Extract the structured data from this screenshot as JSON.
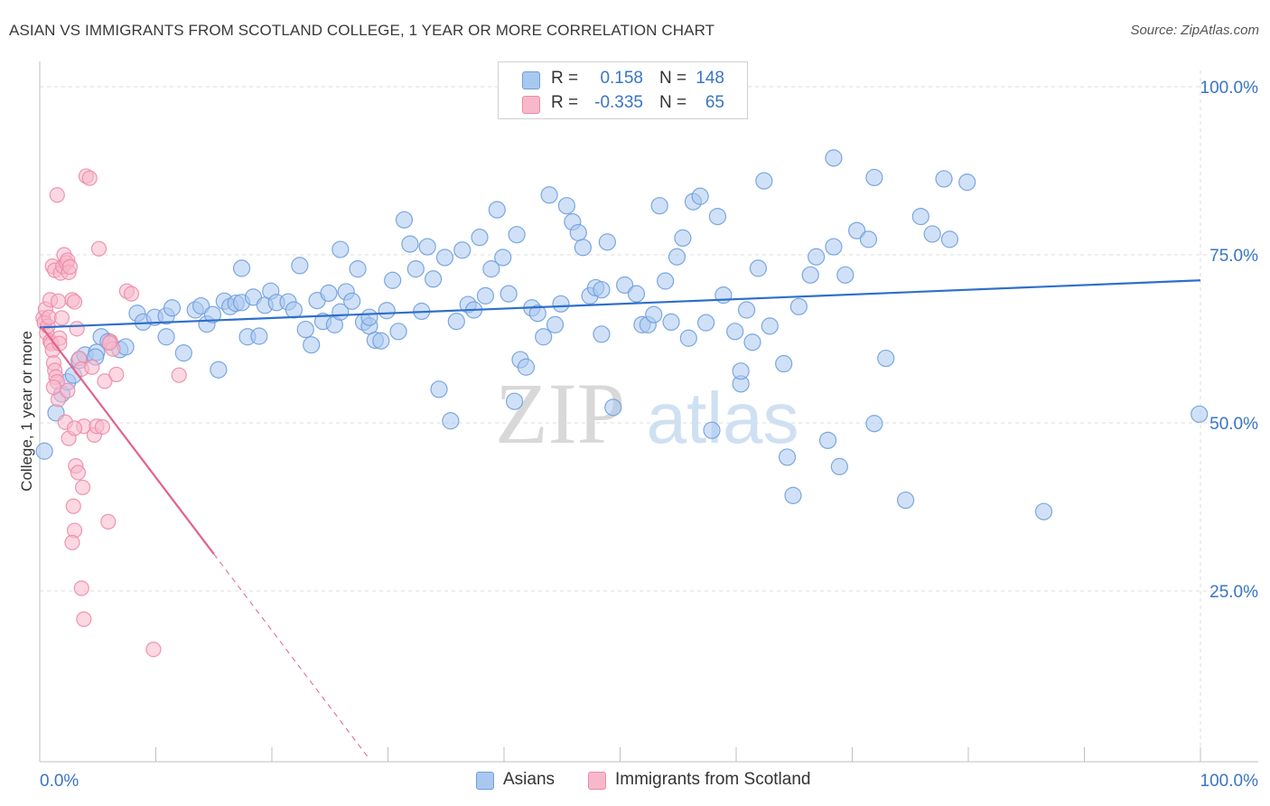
{
  "header": {
    "title": "ASIAN VS IMMIGRANTS FROM SCOTLAND COLLEGE, 1 YEAR OR MORE CORRELATION CHART",
    "source": "Source: ZipAtlas.com"
  },
  "watermark": {
    "zip": "ZIP",
    "atlas": "atlas"
  },
  "legend": {
    "rows": [
      {
        "r_label": "R =",
        "r_value": "0.158",
        "n_label": "N =",
        "n_value": "148"
      },
      {
        "r_label": "R =",
        "r_value": "-0.335",
        "n_label": "N =",
        "n_value": "65"
      }
    ]
  },
  "colors": {
    "asians_fill": "#a9c8f0",
    "asians_stroke": "#6f9fdc",
    "asians_line": "#2f6fca",
    "scot_fill": "#f7b8cb",
    "scot_stroke": "#ee8aa8",
    "scot_line": "#e2628c",
    "axis_text": "#3a75c4",
    "grid": "#dddddd"
  },
  "chart_data": {
    "type": "scatter",
    "title": "ASIAN VS IMMIGRANTS FROM SCOTLAND COLLEGE, 1 YEAR OR MORE CORRELATION CHART",
    "xlabel": "",
    "ylabel": "College, 1 year or more",
    "xlim": [
      0,
      100
    ],
    "ylim": [
      0,
      104
    ],
    "x_tick_labels": [
      "0.0%",
      "100.0%"
    ],
    "y_ticks": [
      25,
      50,
      75,
      100
    ],
    "y_tick_labels": [
      "25.0%",
      "50.0%",
      "75.0%",
      "100.0%"
    ],
    "grid": true,
    "series": [
      {
        "name": "Asians",
        "r": 0.158,
        "n": 148,
        "trend": {
          "x": [
            0,
            100
          ],
          "y": [
            64.2,
            71.2
          ]
        },
        "points": [
          [
            0.4,
            45.8
          ],
          [
            1.4,
            51.5
          ],
          [
            1.9,
            54.3
          ],
          [
            2.4,
            56.1
          ],
          [
            2.9,
            57.1
          ],
          [
            3.4,
            59.3
          ],
          [
            3.9,
            60.1
          ],
          [
            4.9,
            60.5
          ],
          [
            4.8,
            59.8
          ],
          [
            5.3,
            62.8
          ],
          [
            5.9,
            62.1
          ],
          [
            6.9,
            60.9
          ],
          [
            7.4,
            61.3
          ],
          [
            8.4,
            66.3
          ],
          [
            8.9,
            65.0
          ],
          [
            9.9,
            65.7
          ],
          [
            10.9,
            65.9
          ],
          [
            11.4,
            67.1
          ],
          [
            10.9,
            62.8
          ],
          [
            12.4,
            60.4
          ],
          [
            13.4,
            66.8
          ],
          [
            13.9,
            67.4
          ],
          [
            14.4,
            64.7
          ],
          [
            14.9,
            66.1
          ],
          [
            15.4,
            57.9
          ],
          [
            15.9,
            68.1
          ],
          [
            16.4,
            67.3
          ],
          [
            16.9,
            67.8
          ],
          [
            17.4,
            67.9
          ],
          [
            17.4,
            73.0
          ],
          [
            18.4,
            68.7
          ],
          [
            17.9,
            62.8
          ],
          [
            18.9,
            62.9
          ],
          [
            19.4,
            67.5
          ],
          [
            19.9,
            69.6
          ],
          [
            20.4,
            67.9
          ],
          [
            21.4,
            68.0
          ],
          [
            21.9,
            66.8
          ],
          [
            22.4,
            73.4
          ],
          [
            22.9,
            63.9
          ],
          [
            23.4,
            61.6
          ],
          [
            23.9,
            68.2
          ],
          [
            24.4,
            65.1
          ],
          [
            24.9,
            69.3
          ],
          [
            25.4,
            64.6
          ],
          [
            25.9,
            66.5
          ],
          [
            25.9,
            75.8
          ],
          [
            26.4,
            69.5
          ],
          [
            26.9,
            68.1
          ],
          [
            27.4,
            72.9
          ],
          [
            27.9,
            65.0
          ],
          [
            28.4,
            64.4
          ],
          [
            28.4,
            65.7
          ],
          [
            28.9,
            62.3
          ],
          [
            29.4,
            62.2
          ],
          [
            29.9,
            66.7
          ],
          [
            30.4,
            71.2
          ],
          [
            30.9,
            63.6
          ],
          [
            31.4,
            80.2
          ],
          [
            31.9,
            76.6
          ],
          [
            32.4,
            72.9
          ],
          [
            32.9,
            66.6
          ],
          [
            33.4,
            76.2
          ],
          [
            33.9,
            71.4
          ],
          [
            34.4,
            55.0
          ],
          [
            34.9,
            74.6
          ],
          [
            35.4,
            50.3
          ],
          [
            35.9,
            65.1
          ],
          [
            36.4,
            75.7
          ],
          [
            36.9,
            67.6
          ],
          [
            37.4,
            66.8
          ],
          [
            37.9,
            77.6
          ],
          [
            38.4,
            68.9
          ],
          [
            38.9,
            72.9
          ],
          [
            39.4,
            81.7
          ],
          [
            39.9,
            74.6
          ],
          [
            40.4,
            69.2
          ],
          [
            40.9,
            53.2
          ],
          [
            41.1,
            78.0
          ],
          [
            41.4,
            59.4
          ],
          [
            41.9,
            58.3
          ],
          [
            42.4,
            67.1
          ],
          [
            42.9,
            66.3
          ],
          [
            43.4,
            62.8
          ],
          [
            43.9,
            83.9
          ],
          [
            44.4,
            64.6
          ],
          [
            44.9,
            67.7
          ],
          [
            45.4,
            82.3
          ],
          [
            45.9,
            79.9
          ],
          [
            46.4,
            78.3
          ],
          [
            46.8,
            76.1
          ],
          [
            47.4,
            68.9
          ],
          [
            47.9,
            70.1
          ],
          [
            48.4,
            63.2
          ],
          [
            48.4,
            69.8
          ],
          [
            48.9,
            76.9
          ],
          [
            49.4,
            52.3
          ],
          [
            50.4,
            70.5
          ],
          [
            51.4,
            69.2
          ],
          [
            51.9,
            64.6
          ],
          [
            52.4,
            64.6
          ],
          [
            52.9,
            66.1
          ],
          [
            53.4,
            82.3
          ],
          [
            53.9,
            71.1
          ],
          [
            54.4,
            65.0
          ],
          [
            54.9,
            74.7
          ],
          [
            55.4,
            77.5
          ],
          [
            55.9,
            62.6
          ],
          [
            56.3,
            82.9
          ],
          [
            56.9,
            83.7
          ],
          [
            57.4,
            64.9
          ],
          [
            57.9,
            48.9
          ],
          [
            58.4,
            80.7
          ],
          [
            58.9,
            69.0
          ],
          [
            59.9,
            63.6
          ],
          [
            60.4,
            55.8
          ],
          [
            60.4,
            57.7
          ],
          [
            60.9,
            66.8
          ],
          [
            61.4,
            62.0
          ],
          [
            61.9,
            73.0
          ],
          [
            62.4,
            86.0
          ],
          [
            62.9,
            64.4
          ],
          [
            64.1,
            58.8
          ],
          [
            64.4,
            44.9
          ],
          [
            64.9,
            39.2
          ],
          [
            65.4,
            67.3
          ],
          [
            66.4,
            72.0
          ],
          [
            66.9,
            74.7
          ],
          [
            67.9,
            47.4
          ],
          [
            68.4,
            76.2
          ],
          [
            68.9,
            43.5
          ],
          [
            68.4,
            89.4
          ],
          [
            69.4,
            72.0
          ],
          [
            70.4,
            78.6
          ],
          [
            71.4,
            77.3
          ],
          [
            71.9,
            86.5
          ],
          [
            72.9,
            59.6
          ],
          [
            71.9,
            49.9
          ],
          [
            74.6,
            38.5
          ],
          [
            75.9,
            80.7
          ],
          [
            76.9,
            78.1
          ],
          [
            77.9,
            86.3
          ],
          [
            78.4,
            77.3
          ],
          [
            79.9,
            85.8
          ],
          [
            86.5,
            36.8
          ],
          [
            99.9,
            51.3
          ]
        ]
      },
      {
        "name": "Immigrants from Scotland",
        "r": -0.335,
        "n": 65,
        "trend": {
          "x": [
            0.2,
            15.0
          ],
          "y": [
            64.2,
            30.5
          ]
        },
        "trend_dashed": {
          "x": [
            15.0,
            28.4
          ],
          "y": [
            30.5,
            0
          ]
        },
        "points": [
          [
            0.3,
            65.6
          ],
          [
            0.4,
            64.9
          ],
          [
            0.5,
            66.9
          ],
          [
            0.6,
            63.4
          ],
          [
            0.7,
            64.4
          ],
          [
            0.8,
            65.7
          ],
          [
            0.9,
            62.1
          ],
          [
            1.0,
            61.8
          ],
          [
            1.1,
            60.8
          ],
          [
            1.2,
            58.9
          ],
          [
            1.3,
            57.8
          ],
          [
            1.4,
            56.8
          ],
          [
            1.5,
            56.1
          ],
          [
            1.6,
            53.5
          ],
          [
            1.7,
            62.6
          ],
          [
            0.9,
            68.3
          ],
          [
            1.1,
            73.3
          ],
          [
            1.3,
            72.7
          ],
          [
            1.6,
            68.1
          ],
          [
            1.8,
            72.3
          ],
          [
            2.0,
            73.3
          ],
          [
            2.1,
            75.0
          ],
          [
            2.3,
            73.8
          ],
          [
            2.4,
            74.2
          ],
          [
            2.5,
            72.4
          ],
          [
            2.6,
            73.2
          ],
          [
            2.8,
            68.3
          ],
          [
            3.0,
            68.0
          ],
          [
            3.2,
            64.0
          ],
          [
            3.4,
            59.6
          ],
          [
            3.6,
            58.0
          ],
          [
            3.8,
            49.5
          ],
          [
            4.0,
            86.7
          ],
          [
            4.3,
            86.4
          ],
          [
            4.5,
            58.3
          ],
          [
            4.7,
            48.2
          ],
          [
            4.9,
            49.5
          ],
          [
            5.1,
            75.9
          ],
          [
            5.4,
            49.4
          ],
          [
            5.6,
            56.2
          ],
          [
            5.9,
            35.3
          ],
          [
            6.1,
            62.1
          ],
          [
            6.3,
            61.0
          ],
          [
            6.6,
            57.2
          ],
          [
            6.0,
            61.9
          ],
          [
            3.1,
            43.6
          ],
          [
            3.3,
            42.6
          ],
          [
            2.9,
            37.6
          ],
          [
            3.0,
            34.0
          ],
          [
            2.8,
            32.2
          ],
          [
            3.7,
            40.4
          ],
          [
            3.6,
            25.4
          ],
          [
            3.8,
            20.8
          ],
          [
            9.8,
            16.3
          ],
          [
            1.5,
            83.9
          ],
          [
            1.2,
            55.3
          ],
          [
            2.2,
            50.1
          ],
          [
            2.5,
            47.7
          ],
          [
            3.0,
            49.2
          ],
          [
            2.4,
            54.8
          ],
          [
            7.5,
            69.6
          ],
          [
            7.9,
            69.2
          ],
          [
            1.7,
            61.8
          ],
          [
            1.9,
            65.6
          ],
          [
            12.0,
            57.1
          ]
        ]
      }
    ]
  },
  "x_axis": {
    "left_label": "0.0%",
    "right_label": "100.0%"
  },
  "y_axis": {
    "label": "College, 1 year or more",
    "labels": [
      "100.0%",
      "75.0%",
      "50.0%",
      "25.0%"
    ]
  },
  "bottom_legend": {
    "asians": "Asians",
    "scotland": "Immigrants from Scotland"
  }
}
